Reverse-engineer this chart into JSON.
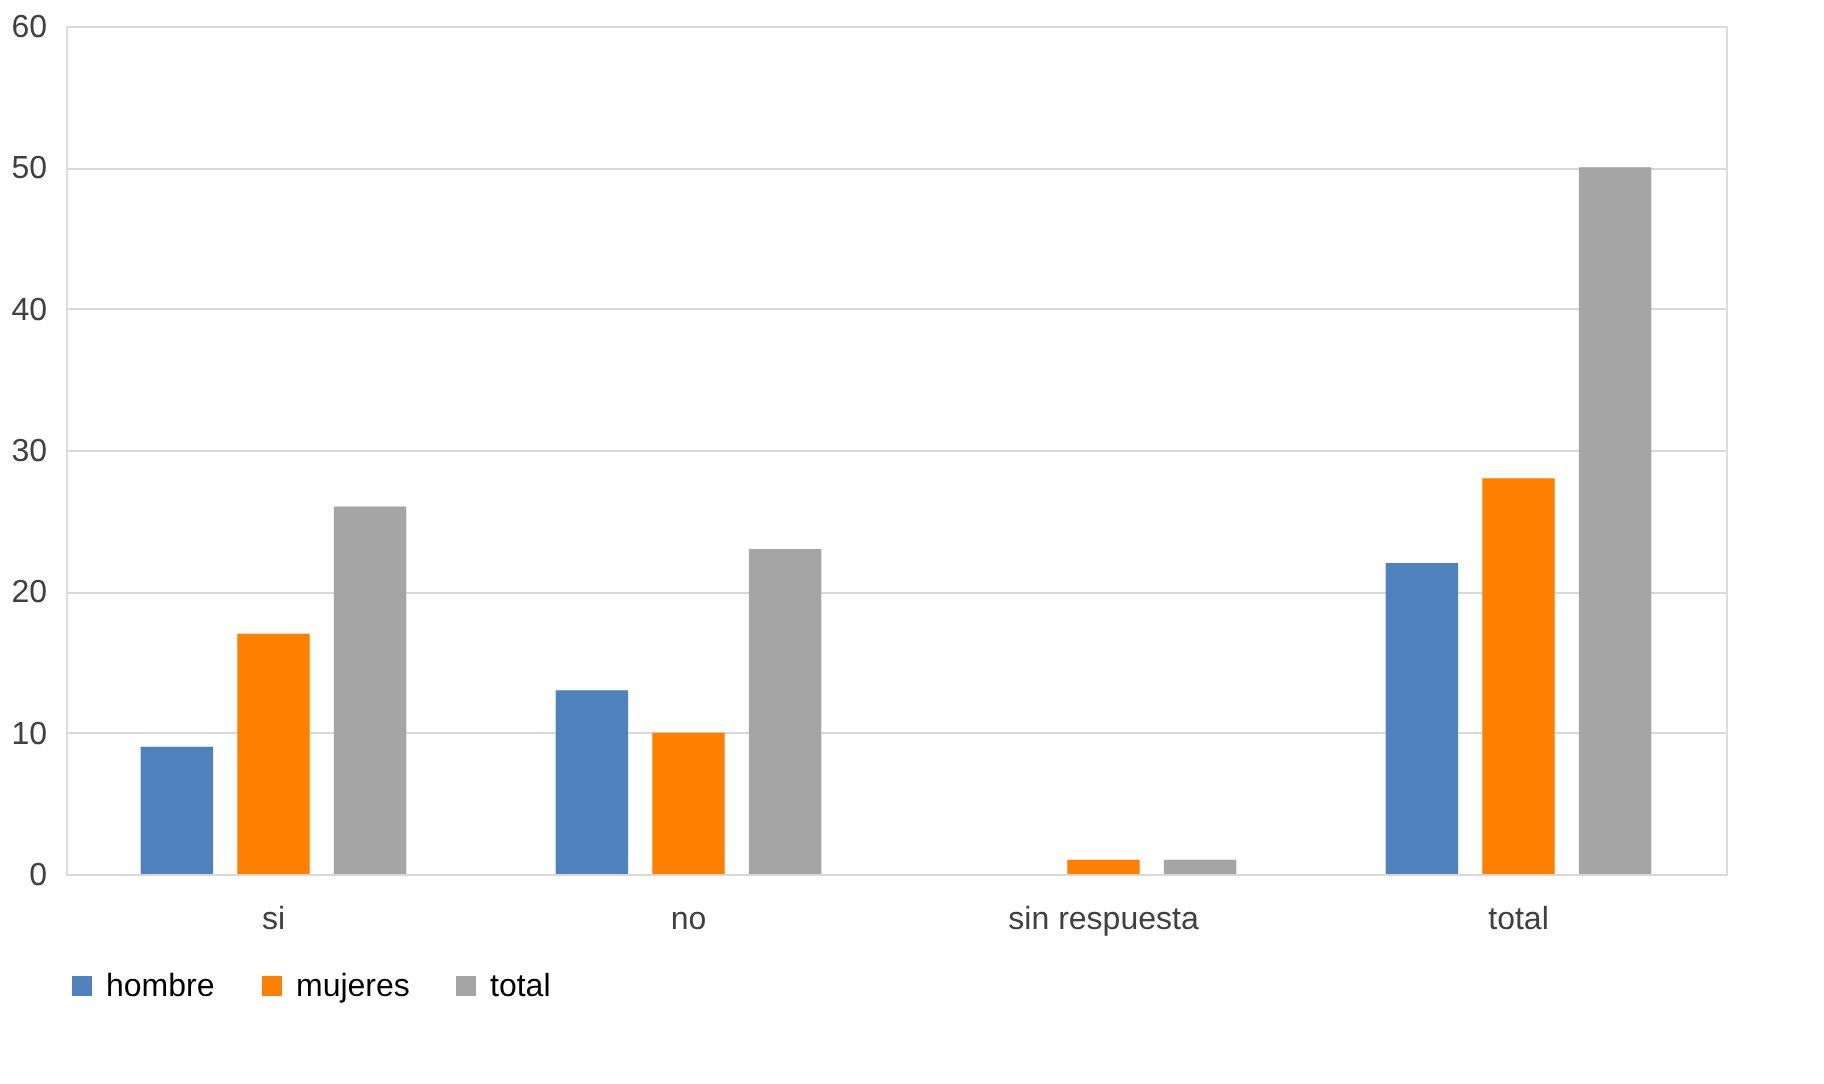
{
  "chart_data": {
    "type": "bar",
    "categories": [
      "si",
      "no",
      "sin respuesta",
      "total"
    ],
    "series": [
      {
        "name": "hombre",
        "color": "#4f81bd",
        "values": [
          9,
          13,
          0,
          22
        ]
      },
      {
        "name": "mujeres",
        "color": "#ff8000",
        "values": [
          17,
          10,
          1,
          28
        ]
      },
      {
        "name": "total",
        "color": "#a5a5a5",
        "values": [
          26,
          23,
          1,
          50
        ]
      }
    ],
    "ylim": [
      0,
      60
    ],
    "yticks": [
      0,
      10,
      20,
      30,
      40,
      50,
      60
    ],
    "grid": "y",
    "legend": "bottom"
  }
}
